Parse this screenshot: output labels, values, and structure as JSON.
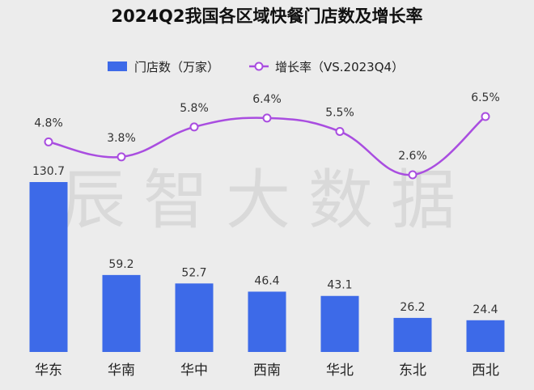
{
  "chart_data": {
    "type": "bar",
    "title": "2024Q2我国各区域快餐门店数及增长率",
    "categories": [
      "华东",
      "华南",
      "华中",
      "西南",
      "华北",
      "东北",
      "西北"
    ],
    "series": [
      {
        "name": "门店数（万家）",
        "type": "bar",
        "axis": "left",
        "values": [
          130.7,
          59.2,
          52.7,
          46.4,
          43.1,
          26.2,
          24.4
        ],
        "labels": [
          "130.7",
          "59.2",
          "52.7",
          "46.4",
          "43.1",
          "26.2",
          "24.4"
        ]
      },
      {
        "name": "增长率（VS.2023Q4）",
        "type": "line",
        "smooth": true,
        "axis": "right",
        "values": [
          4.8,
          3.8,
          5.8,
          6.4,
          5.5,
          2.6,
          6.5
        ],
        "labels": [
          "4.8%",
          "3.8%",
          "5.8%",
          "6.4%",
          "5.5%",
          "2.6%",
          "6.5%"
        ]
      }
    ],
    "ylim": [
      0,
      130.7
    ],
    "y2lim": [
      -4.8,
      6.5
    ],
    "legend_position": "top",
    "grid": false,
    "colors": {
      "bar": "#3d6ae8",
      "line": "#a94de0",
      "marker_fill": "#ffffff",
      "background": "#ececec"
    }
  },
  "watermark": "辰智大数据"
}
